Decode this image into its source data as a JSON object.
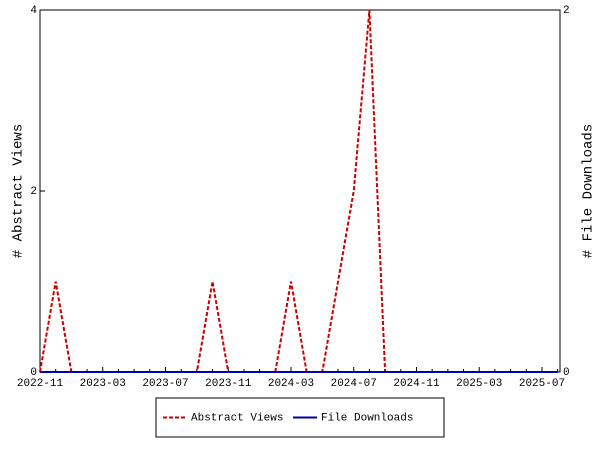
{
  "chart_data": {
    "type": "line",
    "categories": [
      "2022-11",
      null,
      null,
      null,
      "2023-03",
      null,
      null,
      null,
      "2023-07",
      null,
      null,
      null,
      "2023-11",
      null,
      null,
      null,
      "2024-03",
      null,
      null,
      null,
      "2024-07",
      null,
      null,
      null,
      "2024-11",
      null,
      null,
      null,
      "2025-03",
      null,
      null,
      null,
      "2025-07",
      null
    ],
    "series": [
      {
        "name": "Abstract Views",
        "color": "#cc0000",
        "dash": true,
        "axis": "y",
        "values": [
          0,
          1,
          0,
          0,
          0,
          0,
          0,
          0,
          0,
          0,
          0,
          1,
          0,
          0,
          0,
          0,
          1,
          0,
          0,
          1,
          2,
          4,
          0,
          0,
          0,
          0,
          0,
          0,
          0,
          0,
          0,
          0,
          0,
          0
        ]
      },
      {
        "name": "File Downloads",
        "color": "#0000aa",
        "dash": false,
        "axis": "y2",
        "values": [
          0,
          0,
          0,
          0,
          0,
          0,
          0,
          0,
          0,
          0,
          0,
          0,
          0,
          0,
          0,
          0,
          0,
          0,
          0,
          0,
          0,
          0,
          0,
          0,
          0,
          0,
          0,
          0,
          0,
          0,
          0,
          0,
          0,
          0
        ]
      }
    ],
    "y_label": "# Abstract Views",
    "y2_label": "# File Downloads",
    "ylim": [
      0,
      4
    ],
    "yticks": [
      0,
      2,
      4
    ],
    "y2lim": [
      0,
      2
    ],
    "y2ticks": [
      0,
      2
    ]
  }
}
